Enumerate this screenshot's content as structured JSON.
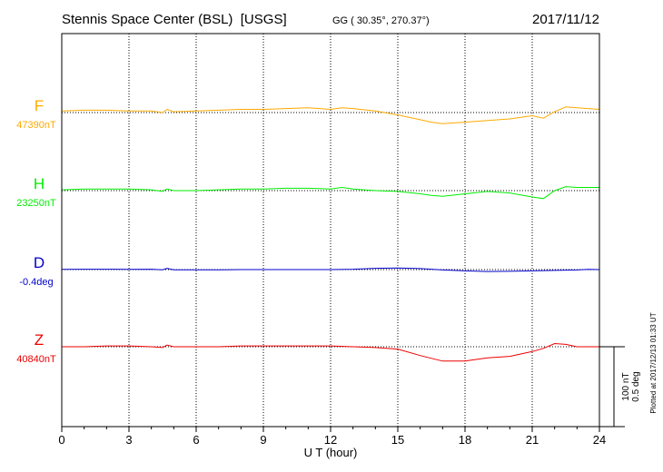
{
  "header": {
    "title": "Stennis Space Center (BSL)  [USGS]",
    "coords": "GG ( 30.35°, 270.37°)",
    "date": "2017/11/12"
  },
  "xaxis": {
    "label": "U T (hour)",
    "ticks": [
      "0",
      "3",
      "6",
      "9",
      "12",
      "15",
      "18",
      "21",
      "24"
    ]
  },
  "scale": {
    "nt": "100 nT",
    "deg": "0.5 deg"
  },
  "plotted": "Plotted at 2017/12/13 01:33 UT",
  "chart_data": {
    "type": "line",
    "title": "Stennis Space Center (BSL)  [USGS]",
    "xlabel": "U T (hour)",
    "xlim": [
      0,
      24
    ],
    "x_ticks": [
      0,
      3,
      6,
      9,
      12,
      15,
      18,
      21,
      24
    ],
    "grid": true,
    "series": [
      {
        "name": "F",
        "baseline_label": "47390nT",
        "color": "#ffaa00",
        "unit": "nT",
        "baseline": 47390,
        "x": [
          0,
          1,
          2,
          3,
          4,
          4.5,
          4.7,
          5,
          6,
          7,
          8,
          9,
          10,
          11,
          12,
          12.5,
          13,
          14,
          15,
          16,
          16.5,
          17,
          18,
          19,
          20,
          21,
          21.5,
          22,
          22.5,
          23,
          24
        ],
        "y": [
          47392,
          47393,
          47393,
          47392,
          47392,
          47390,
          47394,
          47391,
          47392,
          47393,
          47394,
          47394,
          47395,
          47396,
          47394,
          47396,
          47395,
          47392,
          47387,
          47381,
          47378,
          47376,
          47378,
          47380,
          47382,
          47386,
          47383,
          47391,
          47397,
          47396,
          47394
        ]
      },
      {
        "name": "H",
        "baseline_label": "23250nT",
        "color": "#00ee00",
        "unit": "nT",
        "baseline": 23250,
        "x": [
          0,
          1,
          2,
          3,
          4,
          4.5,
          4.7,
          5,
          6,
          7,
          8,
          9,
          10,
          11,
          12,
          12.5,
          13,
          14,
          15,
          16,
          16.5,
          17,
          18,
          19,
          20,
          21,
          21.5,
          22,
          22.5,
          23,
          24
        ],
        "y": [
          23251,
          23252,
          23252,
          23252,
          23251,
          23249,
          23252,
          23250,
          23250,
          23251,
          23252,
          23252,
          23253,
          23253,
          23252,
          23254,
          23252,
          23250,
          23249,
          23246,
          23244,
          23243,
          23246,
          23249,
          23247,
          23242,
          23240,
          23250,
          23255,
          23254,
          23254
        ]
      },
      {
        "name": "D",
        "baseline_label": "-0.4deg",
        "color": "#0000cc",
        "unit": "deg",
        "baseline": -0.4,
        "x": [
          0,
          1,
          2,
          3,
          4,
          4.5,
          4.7,
          5,
          6,
          7,
          8,
          9,
          10,
          11,
          12,
          13,
          14,
          15,
          16,
          17,
          18,
          19,
          20,
          21,
          22,
          23,
          23.5,
          24
        ],
        "y": [
          -0.399,
          -0.398,
          -0.398,
          -0.399,
          -0.398,
          -0.401,
          -0.392,
          -0.401,
          -0.401,
          -0.401,
          -0.4,
          -0.4,
          -0.4,
          -0.4,
          -0.4,
          -0.398,
          -0.392,
          -0.39,
          -0.394,
          -0.402,
          -0.408,
          -0.412,
          -0.411,
          -0.408,
          -0.405,
          -0.402,
          -0.399,
          -0.4
        ]
      },
      {
        "name": "Z",
        "baseline_label": "40840nT",
        "color": "#ee0000",
        "unit": "nT",
        "baseline": 40840,
        "x": [
          0,
          1,
          2,
          3,
          4,
          4.5,
          4.7,
          5,
          6,
          7,
          8,
          9,
          10,
          11,
          12,
          13,
          14,
          15,
          16,
          17,
          18,
          19,
          20,
          21,
          21.5,
          22,
          22.5,
          23,
          24
        ],
        "y": [
          40840,
          40840,
          40841,
          40841,
          40840,
          40839,
          40842,
          40840,
          40840,
          40840,
          40841,
          40841,
          40841,
          40841,
          40841,
          40840,
          40839,
          40837,
          40829,
          40822,
          40822,
          40826,
          40828,
          40834,
          40838,
          40844,
          40843,
          40840,
          40840
        ]
      }
    ]
  }
}
